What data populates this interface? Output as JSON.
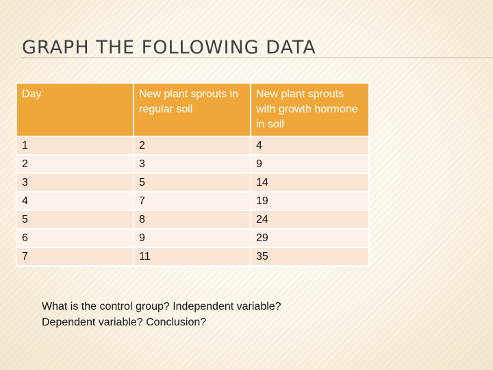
{
  "title": "GRAPH THE FOLLOWING DATA",
  "table": {
    "headers": [
      "Day",
      "New plant sprouts in regular soil",
      "New plant sprouts with growth hormone in soil"
    ],
    "rows": [
      [
        "1",
        "2",
        "4"
      ],
      [
        "2",
        "3",
        "9"
      ],
      [
        "3",
        "5",
        "14"
      ],
      [
        "4",
        "7",
        "19"
      ],
      [
        "5",
        "8",
        "24"
      ],
      [
        "6",
        "9",
        "29"
      ],
      [
        "7",
        "11",
        "35"
      ]
    ]
  },
  "question": "What is the control group? Independent variable? Dependent variable? Conclusion?",
  "colors": {
    "header_bg": "#f0a73a",
    "row_odd_bg": "#fbe5d5",
    "row_even_bg": "#fdf1ea"
  }
}
